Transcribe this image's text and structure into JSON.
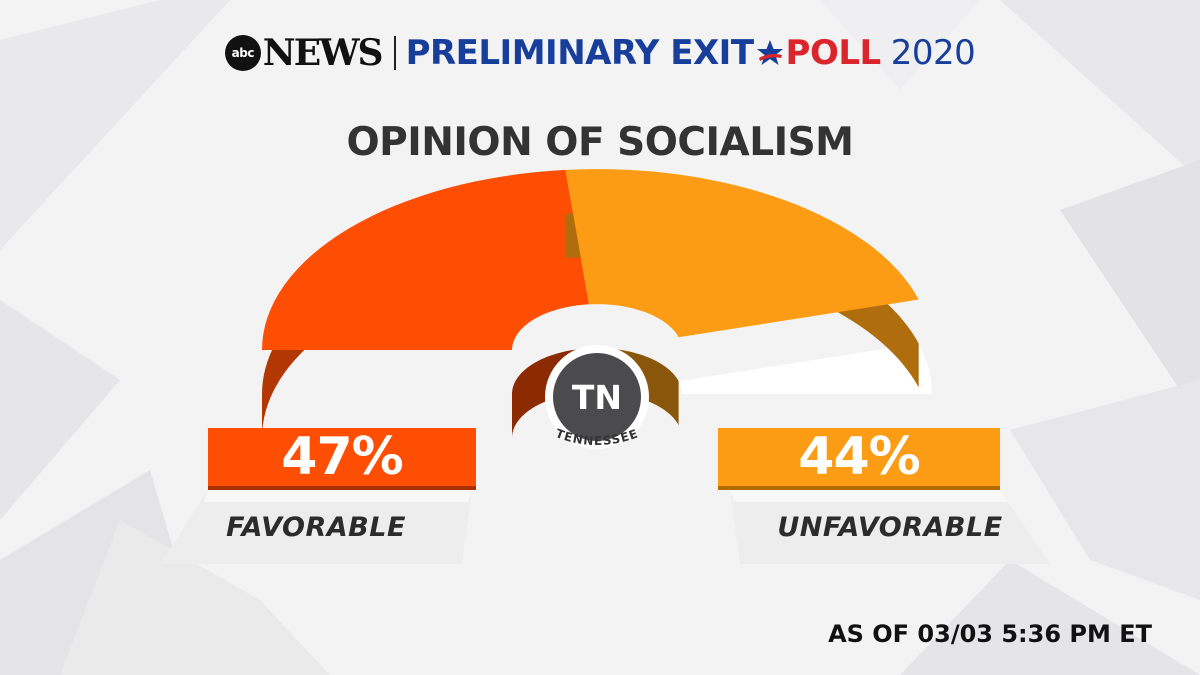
{
  "header": {
    "abc": "abc",
    "news": "NEWS",
    "poll_part1": "PRELIMINARY EXIT",
    "poll_part2": "POLL",
    "year": "2020"
  },
  "state": {
    "abbr": "TN",
    "name": "TENNESSEE"
  },
  "footer": {
    "as_of": "AS OF 03/03 5:36 PM ET"
  },
  "colors": {
    "favorable": "#fe4e04",
    "unfavorable": "#fb9c14",
    "brand_blue": "#173e9b",
    "brand_red": "#d9252b"
  },
  "chart_data": {
    "type": "pie",
    "title": "OPINION OF SOCIALISM",
    "layout": "semicircle-gauge",
    "slices": [
      {
        "label": "FAVORABLE",
        "value": 47,
        "display": "47%",
        "color": "#fe4e04"
      },
      {
        "label": "UNFAVORABLE",
        "value": 44,
        "display": "44%",
        "color": "#fb9c14"
      }
    ],
    "total": 100
  }
}
